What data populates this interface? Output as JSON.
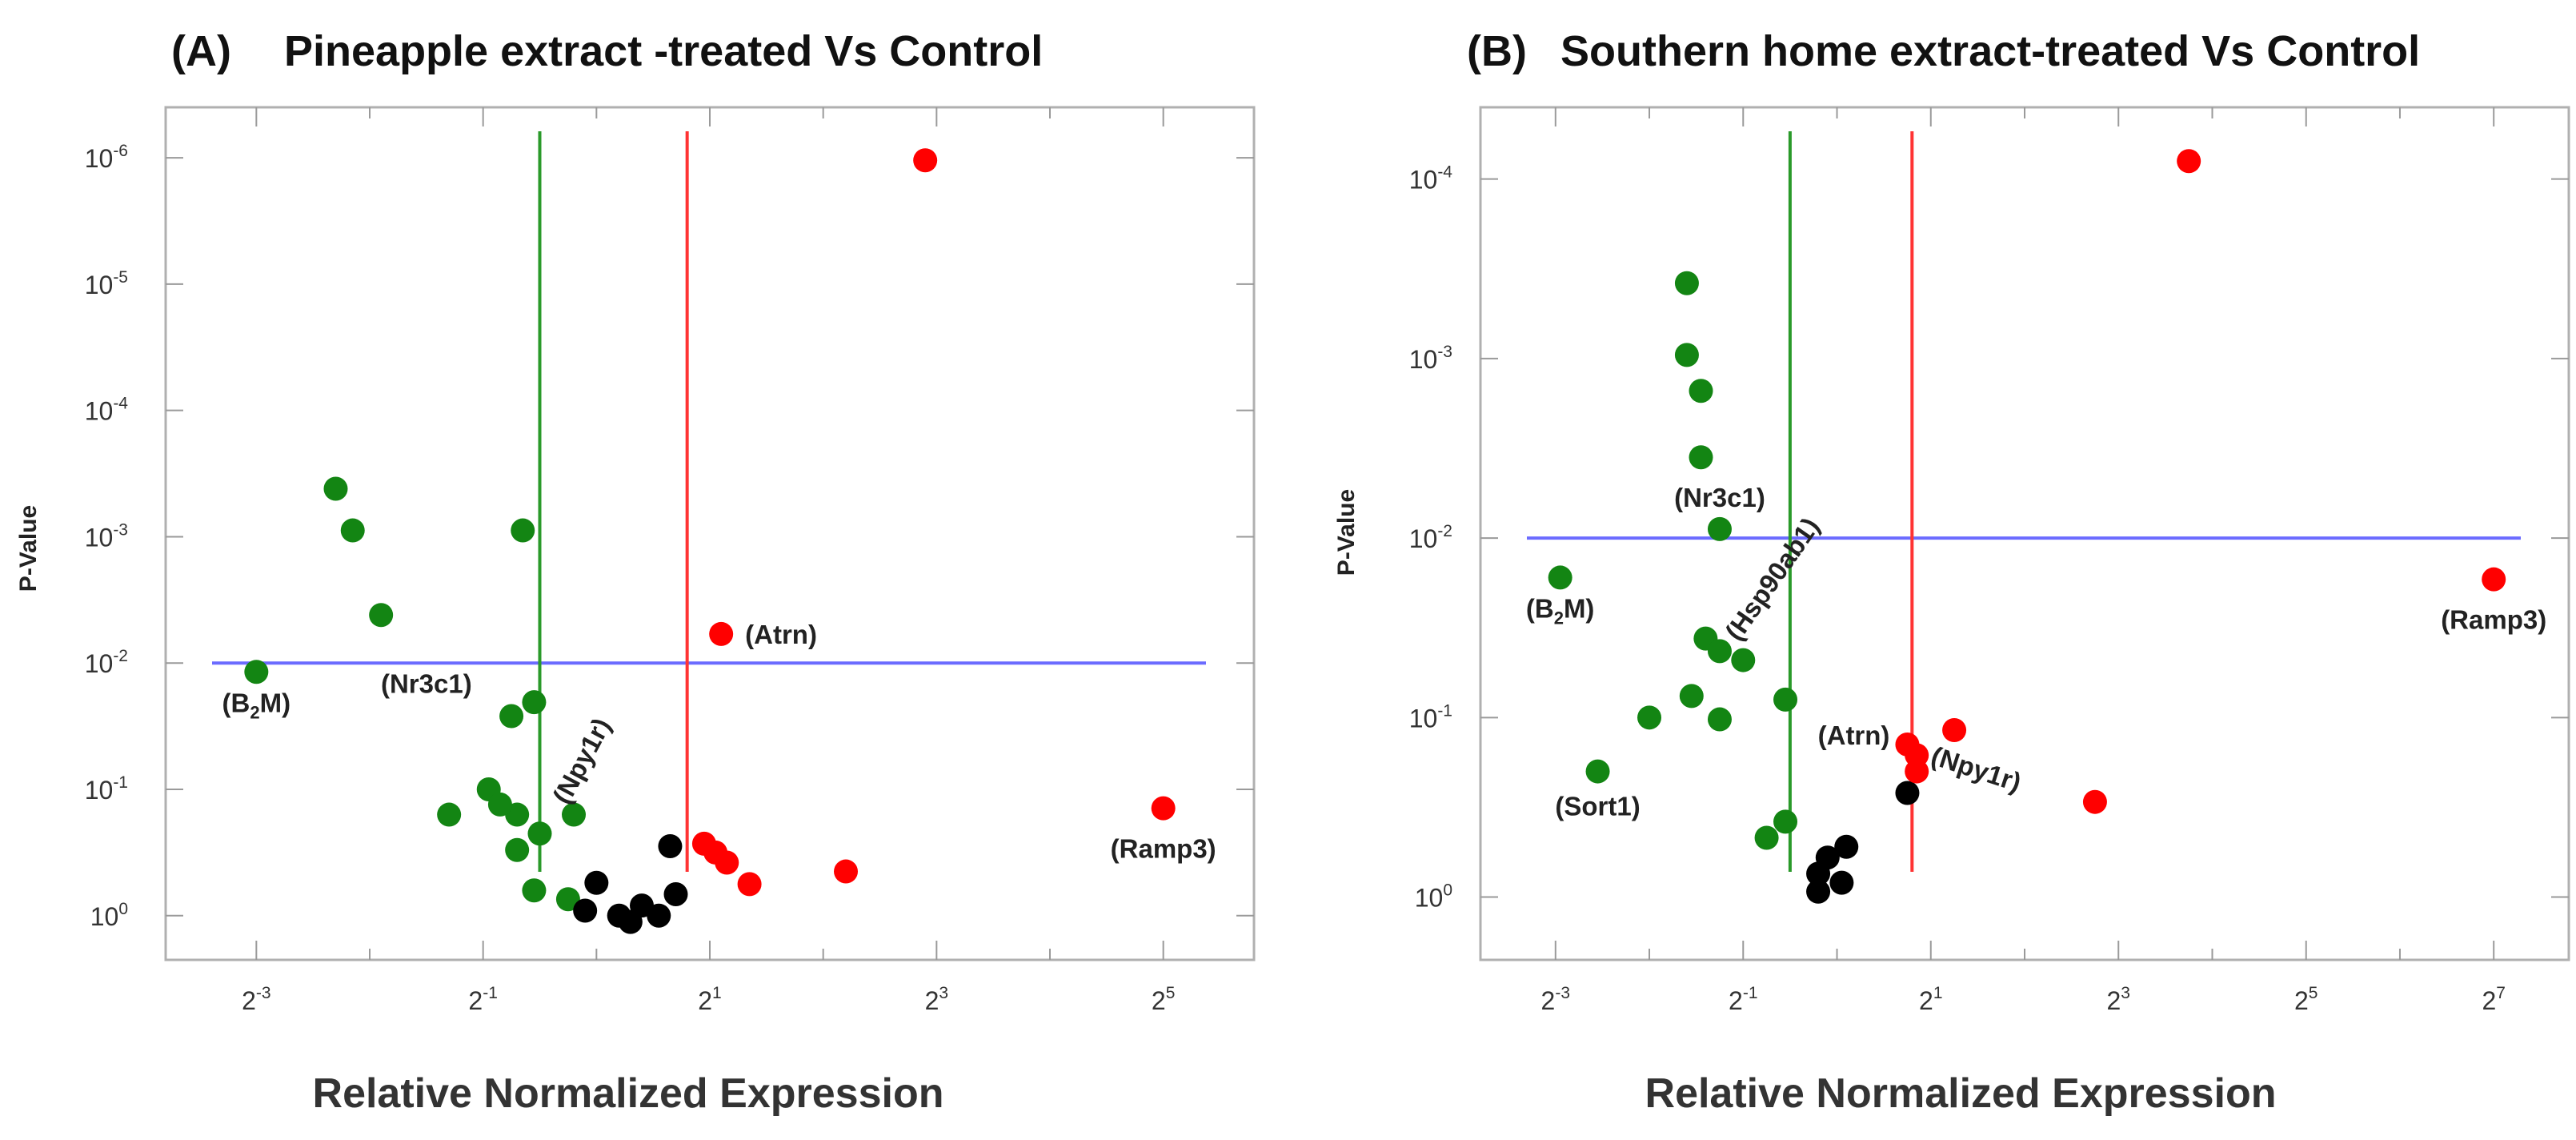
{
  "chart_data": [
    {
      "type": "scatter",
      "panel_label": "(A)",
      "title": "Pineapple extract -treated Vs Control",
      "xlabel": "Relative Normalized Expression",
      "ylabel": "P-Value",
      "x_scale": "log2",
      "y_scale": "log10-inverted",
      "xlim_log2": [
        -3.8,
        5.8
      ],
      "ylim_log10_neg": [
        -0.35,
        6.4
      ],
      "x_ticks": [
        {
          "base": "2",
          "exp": "-3",
          "v": -3
        },
        {
          "base": "2",
          "exp": "-1",
          "v": -1
        },
        {
          "base": "2",
          "exp": "1",
          "v": 1
        },
        {
          "base": "2",
          "exp": "3",
          "v": 3
        },
        {
          "base": "2",
          "exp": "5",
          "v": 5
        }
      ],
      "y_ticks": [
        {
          "base": "10",
          "exp": "0",
          "v": 0
        },
        {
          "base": "10",
          "exp": "-1",
          "v": 1
        },
        {
          "base": "10",
          "exp": "-2",
          "v": 2
        },
        {
          "base": "10",
          "exp": "-3",
          "v": 3
        },
        {
          "base": "10",
          "exp": "-4",
          "v": 4
        },
        {
          "base": "10",
          "exp": "-5",
          "v": 5
        },
        {
          "base": "10",
          "exp": "-6",
          "v": 6
        }
      ],
      "thresholds": {
        "p_line": 2,
        "down_line": -0.5,
        "up_line": 0.8
      },
      "colors": {
        "down": "#138513",
        "up": "#ff0000",
        "ns": "#000000",
        "p_line": "#6b6bff",
        "down_line": "#2a9a2a",
        "up_line": "#ff3333"
      },
      "points": [
        {
          "x": -3.0,
          "y": 1.93,
          "c": "down"
        },
        {
          "x": -2.3,
          "y": 3.38,
          "c": "down"
        },
        {
          "x": -2.15,
          "y": 3.05,
          "c": "down"
        },
        {
          "x": -1.9,
          "y": 2.38,
          "c": "down"
        },
        {
          "x": -1.3,
          "y": 0.8,
          "c": "down"
        },
        {
          "x": -0.95,
          "y": 1.0,
          "c": "down"
        },
        {
          "x": -0.75,
          "y": 1.58,
          "c": "down"
        },
        {
          "x": -0.55,
          "y": 1.69,
          "c": "down"
        },
        {
          "x": -0.7,
          "y": 0.8,
          "c": "down"
        },
        {
          "x": -0.85,
          "y": 0.88,
          "c": "down"
        },
        {
          "x": -0.7,
          "y": 0.52,
          "c": "down"
        },
        {
          "x": -0.5,
          "y": 0.65,
          "c": "down"
        },
        {
          "x": -0.2,
          "y": 0.8,
          "c": "down"
        },
        {
          "x": -0.55,
          "y": 0.2,
          "c": "down"
        },
        {
          "x": -0.25,
          "y": 0.13,
          "c": "down"
        },
        {
          "x": -0.65,
          "y": 3.05,
          "c": "down"
        },
        {
          "x": -0.1,
          "y": 0.04,
          "c": "ns"
        },
        {
          "x": 0.0,
          "y": 0.26,
          "c": "ns"
        },
        {
          "x": 0.2,
          "y": 0.0,
          "c": "ns"
        },
        {
          "x": 0.3,
          "y": -0.05,
          "c": "ns"
        },
        {
          "x": 0.4,
          "y": 0.08,
          "c": "ns"
        },
        {
          "x": 0.55,
          "y": 0.0,
          "c": "ns"
        },
        {
          "x": 0.7,
          "y": 0.17,
          "c": "ns"
        },
        {
          "x": 0.65,
          "y": 0.55,
          "c": "ns"
        },
        {
          "x": 0.95,
          "y": 0.57,
          "c": "up"
        },
        {
          "x": 1.05,
          "y": 0.5,
          "c": "up"
        },
        {
          "x": 1.15,
          "y": 0.42,
          "c": "up"
        },
        {
          "x": 1.35,
          "y": 0.25,
          "c": "up"
        },
        {
          "x": 1.1,
          "y": 2.23,
          "c": "up"
        },
        {
          "x": 2.2,
          "y": 0.35,
          "c": "up"
        },
        {
          "x": 2.9,
          "y": 5.98,
          "c": "up"
        },
        {
          "x": 5.0,
          "y": 0.85,
          "c": "up"
        }
      ],
      "annotations": [
        {
          "pre": "(B",
          "sub": "2",
          "post": "M)",
          "x": -3.0,
          "y": 1.93,
          "anchor": "middle",
          "dx": 0,
          "dy": 50,
          "rot": 0
        },
        {
          "pre": "(Nr3c1)",
          "sub": "",
          "post": "",
          "x": -1.5,
          "y": 1.93,
          "anchor": "middle",
          "dx": 0,
          "dy": 26,
          "rot": 0
        },
        {
          "pre": "(Npy1r)",
          "sub": "",
          "post": "",
          "x": -0.35,
          "y": 0.83,
          "anchor": "start",
          "dx": 14,
          "dy": -6,
          "rot": -62
        },
        {
          "pre": "(Atrn)",
          "sub": "",
          "post": "",
          "x": 1.1,
          "y": 2.23,
          "anchor": "start",
          "dx": 30,
          "dy": 12,
          "rot": 0
        },
        {
          "pre": "(Ramp3)",
          "sub": "",
          "post": "",
          "x": 5.0,
          "y": 0.85,
          "anchor": "middle",
          "dx": 0,
          "dy": 62,
          "rot": 0
        }
      ]
    },
    {
      "type": "scatter",
      "panel_label": "(B)",
      "title": "Southern home extract-treated  Vs Control",
      "xlabel": "Relative Normalized Expression",
      "ylabel": "P-Value",
      "x_scale": "log2",
      "y_scale": "log10-inverted",
      "xlim_log2": [
        -3.8,
        7.8
      ],
      "ylim_log10_neg": [
        -0.35,
        4.4
      ],
      "x_ticks": [
        {
          "base": "2",
          "exp": "-3",
          "v": -3
        },
        {
          "base": "2",
          "exp": "-1",
          "v": -1
        },
        {
          "base": "2",
          "exp": "1",
          "v": 1
        },
        {
          "base": "2",
          "exp": "3",
          "v": 3
        },
        {
          "base": "2",
          "exp": "5",
          "v": 5
        },
        {
          "base": "2",
          "exp": "7",
          "v": 7
        }
      ],
      "y_ticks": [
        {
          "base": "10",
          "exp": "0",
          "v": 0
        },
        {
          "base": "10",
          "exp": "-1",
          "v": 1
        },
        {
          "base": "10",
          "exp": "-2",
          "v": 2
        },
        {
          "base": "10",
          "exp": "-3",
          "v": 3
        },
        {
          "base": "10",
          "exp": "-4",
          "v": 4
        }
      ],
      "thresholds": {
        "p_line": 2,
        "down_line": -0.5,
        "up_line": 0.8
      },
      "colors": {
        "down": "#138513",
        "up": "#ff0000",
        "ns": "#000000",
        "p_line": "#6b6bff",
        "down_line": "#2a9a2a",
        "up_line": "#ff3333"
      },
      "points": [
        {
          "x": -2.95,
          "y": 1.78,
          "c": "down"
        },
        {
          "x": -2.55,
          "y": 0.7,
          "c": "down"
        },
        {
          "x": -2.0,
          "y": 1.0,
          "c": "down"
        },
        {
          "x": -1.6,
          "y": 3.42,
          "c": "down"
        },
        {
          "x": -1.6,
          "y": 3.02,
          "c": "down"
        },
        {
          "x": -1.45,
          "y": 2.82,
          "c": "down"
        },
        {
          "x": -1.45,
          "y": 2.45,
          "c": "down"
        },
        {
          "x": -1.25,
          "y": 2.05,
          "c": "down"
        },
        {
          "x": -1.4,
          "y": 1.44,
          "c": "down"
        },
        {
          "x": -1.25,
          "y": 1.37,
          "c": "down"
        },
        {
          "x": -1.0,
          "y": 1.32,
          "c": "down"
        },
        {
          "x": -1.55,
          "y": 1.12,
          "c": "down"
        },
        {
          "x": -1.25,
          "y": 0.99,
          "c": "down"
        },
        {
          "x": -0.55,
          "y": 1.1,
          "c": "down"
        },
        {
          "x": -0.55,
          "y": 0.42,
          "c": "down"
        },
        {
          "x": -0.75,
          "y": 0.33,
          "c": "down"
        },
        {
          "x": -0.2,
          "y": 0.03,
          "c": "ns"
        },
        {
          "x": -0.2,
          "y": 0.13,
          "c": "ns"
        },
        {
          "x": -0.1,
          "y": 0.22,
          "c": "ns"
        },
        {
          "x": 0.05,
          "y": 0.08,
          "c": "ns"
        },
        {
          "x": 0.1,
          "y": 0.28,
          "c": "ns"
        },
        {
          "x": 0.75,
          "y": 0.58,
          "c": "ns"
        },
        {
          "x": 0.75,
          "y": 0.85,
          "c": "up"
        },
        {
          "x": 0.85,
          "y": 0.79,
          "c": "up"
        },
        {
          "x": 0.85,
          "y": 0.7,
          "c": "up"
        },
        {
          "x": 1.25,
          "y": 0.93,
          "c": "up"
        },
        {
          "x": 2.75,
          "y": 0.53,
          "c": "up"
        },
        {
          "x": 3.75,
          "y": 4.1,
          "c": "up"
        },
        {
          "x": 7.0,
          "y": 1.77,
          "c": "up"
        }
      ],
      "annotations": [
        {
          "pre": "(B",
          "sub": "2",
          "post": "M)",
          "x": -2.95,
          "y": 1.78,
          "anchor": "middle",
          "dx": 0,
          "dy": 50,
          "rot": 0
        },
        {
          "pre": "(Nr3c1)",
          "sub": "",
          "post": "",
          "x": -1.25,
          "y": 2.05,
          "anchor": "middle",
          "dx": 0,
          "dy": -28,
          "rot": 0
        },
        {
          "pre": "(Hsp90ab1)",
          "sub": "",
          "post": "",
          "x": -1.2,
          "y": 1.4,
          "anchor": "start",
          "dx": 18,
          "dy": -4,
          "rot": -55
        },
        {
          "pre": "(Sort1)",
          "sub": "",
          "post": "",
          "x": -2.55,
          "y": 0.7,
          "anchor": "middle",
          "dx": 0,
          "dy": 55,
          "rot": 0
        },
        {
          "pre": "(Atrn)",
          "sub": "",
          "post": "",
          "x": 0.75,
          "y": 0.85,
          "anchor": "end",
          "dx": -22,
          "dy": 0,
          "rot": 0
        },
        {
          "pre": "(Npy1r)",
          "sub": "",
          "post": "",
          "x": 0.9,
          "y": 0.7,
          "anchor": "start",
          "dx": 10,
          "dy": -10,
          "rot": 18
        },
        {
          "pre": "(Ramp3)",
          "sub": "",
          "post": "",
          "x": 7.0,
          "y": 1.77,
          "anchor": "middle",
          "dx": 0,
          "dy": 62,
          "rot": 0
        }
      ]
    }
  ]
}
